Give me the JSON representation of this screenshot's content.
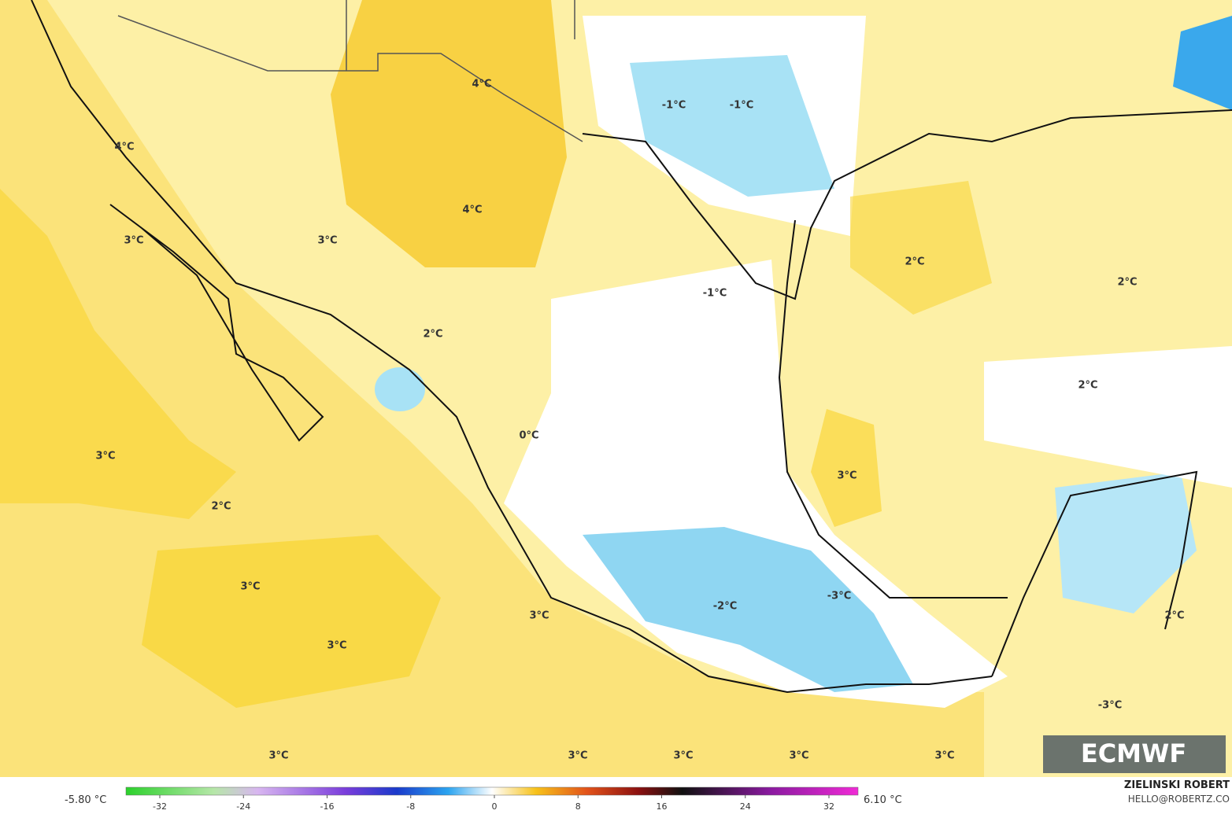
{
  "map": {
    "labels": [
      "4°C",
      "-1°C",
      "-1°C",
      "4°C",
      "4°C",
      "3°C",
      "3°C",
      "2°C",
      "2°C",
      "-1°C",
      "2°C",
      "2°C",
      "0°C",
      "3°C",
      "3°C",
      "2°C",
      "3°C",
      "-3°C",
      "-2°C",
      "2°C",
      "3°C",
      "3°C",
      "-3°C",
      "3°C",
      "3°C",
      "3°C",
      "3°C",
      "3°C"
    ],
    "colorbar": {
      "min_label": "-5.80 °C",
      "max_label": "6.10 °C",
      "ticks": [
        -32,
        -24,
        -16,
        -8,
        0,
        8,
        16,
        24,
        32
      ]
    },
    "credit": {
      "author": "ZIELINSKI ROBERT",
      "email": "HELLO@ROBERTZ.CO"
    },
    "logo": "ECMWF"
  }
}
